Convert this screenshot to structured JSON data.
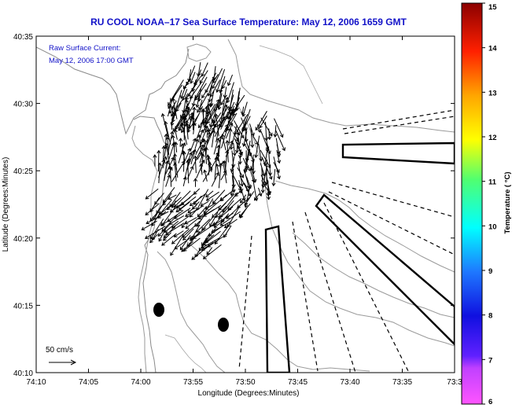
{
  "title": "RU COOL  NOAA–17  Sea Surface Temperature:  May 12, 2006 1659 GMT",
  "annotation": {
    "line1": "Raw Surface Current:",
    "line2": "May 12, 2006 17:00 GMT"
  },
  "axes": {
    "xlabel": "Longitude (Degrees:Minutes)",
    "ylabel": "Latitude (Degrees:Minutes)",
    "x_ticks": [
      "74:10",
      "74:05",
      "74:00",
      "73:55",
      "73:50",
      "73:45",
      "73:40",
      "73:35",
      "73:3"
    ],
    "y_ticks": [
      "40:35",
      "40:30",
      "40:25",
      "40:20",
      "40:15",
      "40:10"
    ]
  },
  "scale": {
    "label": "50 cm/s"
  },
  "colorbar": {
    "label": "Temperature ( °C)",
    "ticks": [
      "15",
      "14",
      "13",
      "12",
      "11",
      "10",
      "9",
      "8",
      "7",
      "6"
    ]
  }
}
